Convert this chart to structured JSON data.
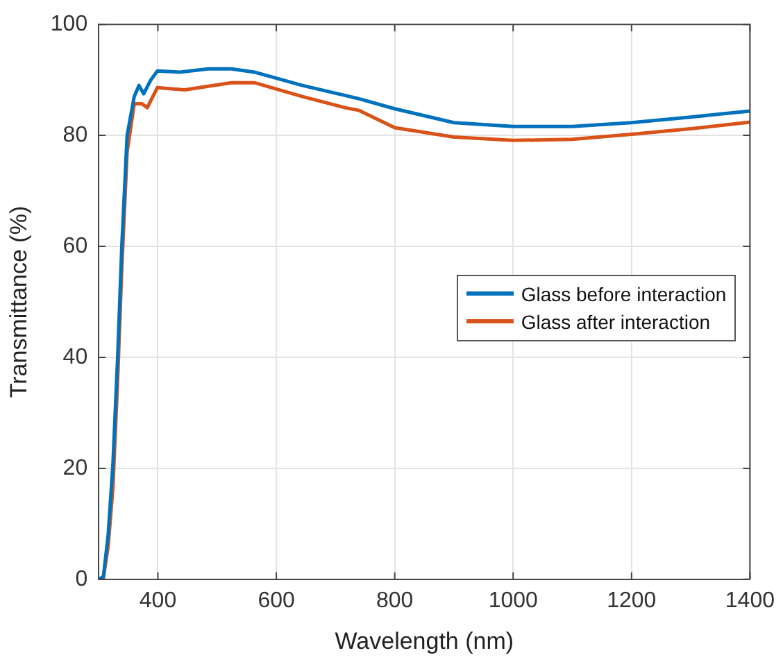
{
  "chart_data": {
    "type": "line",
    "xlabel": "Wavelength (nm)",
    "ylabel": "Transmittance (%)",
    "xlim": [
      300,
      1400
    ],
    "xticks": [
      400,
      600,
      800,
      1000,
      1200,
      1400
    ],
    "ylim": [
      0,
      100
    ],
    "yticks": [
      0,
      20,
      40,
      60,
      80,
      100
    ],
    "grid": true,
    "legend": "right",
    "marker": "none",
    "line_style": "solid",
    "series": [
      {
        "name": "Glass before interaction",
        "color": "#0072bd",
        "x": [
          300,
          308,
          316,
          324,
          332,
          339,
          348,
          360,
          368,
          376,
          388,
          399,
          437,
          485,
          524,
          563,
          644,
          724,
          740,
          800,
          900,
          1000,
          1100,
          1200,
          1300,
          1400
        ],
        "values": [
          0,
          0.5,
          8,
          20.7,
          40,
          60,
          80,
          87,
          89,
          87.5,
          90,
          91.6,
          91.4,
          92,
          92,
          91.4,
          89,
          87,
          86.6,
          84.8,
          82.3,
          81.6,
          81.6,
          82.3,
          83.3,
          84.4
        ]
      },
      {
        "name": "Glass after interaction",
        "color": "#d95319",
        "x": [
          300,
          308,
          316,
          324,
          332,
          339,
          348,
          360,
          373,
          382,
          399,
          445,
          524,
          563,
          644,
          716,
          740,
          800,
          900,
          1000,
          1100,
          1200,
          1300,
          1400
        ],
        "values": [
          0,
          0.3,
          6,
          16.5,
          36,
          56,
          77,
          85.7,
          85.7,
          85,
          88.6,
          88.2,
          89.5,
          89.5,
          87,
          85,
          84.5,
          81.4,
          79.7,
          79.1,
          79.3,
          80.2,
          81.2,
          82.4
        ]
      }
    ]
  }
}
